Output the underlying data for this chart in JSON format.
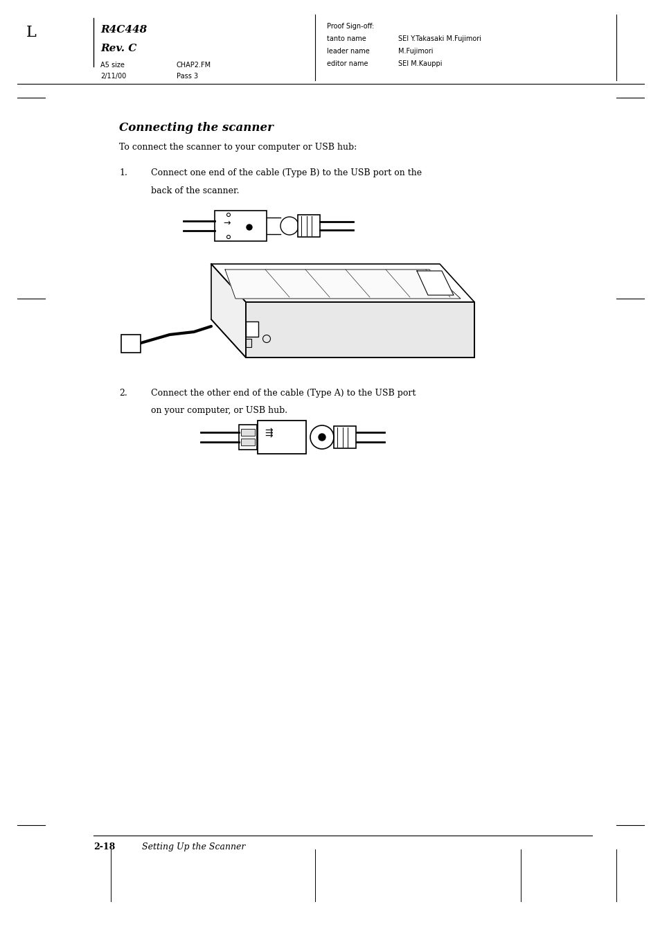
{
  "bg_color": "#ffffff",
  "page_width": 9.54,
  "page_height": 13.51,
  "header": {
    "L_label": "L",
    "title_line1": "R4C448",
    "title_line2": "Rev. C",
    "sub1": "A5 size",
    "sub2": "2/11/00",
    "sub3": "CHAP2.FM",
    "sub4": "Pass 3",
    "proof": "Proof Sign-off:",
    "tanto": "tanto name",
    "tanto_val": "SEI Y.Takasaki M.Fujimori",
    "leader": "leader name",
    "leader_val": "M.Fujimori",
    "editor": "editor name",
    "editor_val": "SEI M.Kauppi"
  },
  "section_title": "Connecting the scanner",
  "intro_text": "To connect the scanner to your computer or USB hub:",
  "step1_num": "1.",
  "step1_text": "Connect one end of the cable (Type B) to the USB port on the\nback of the scanner.",
  "step2_num": "2.",
  "step2_text": "Connect the other end of the cable (Type A) to the USB port\non your computer, or USB hub.",
  "footer_line": "2-18",
  "footer_text": "Setting Up the Scanner",
  "text_color": "#000000",
  "line_color": "#000000"
}
